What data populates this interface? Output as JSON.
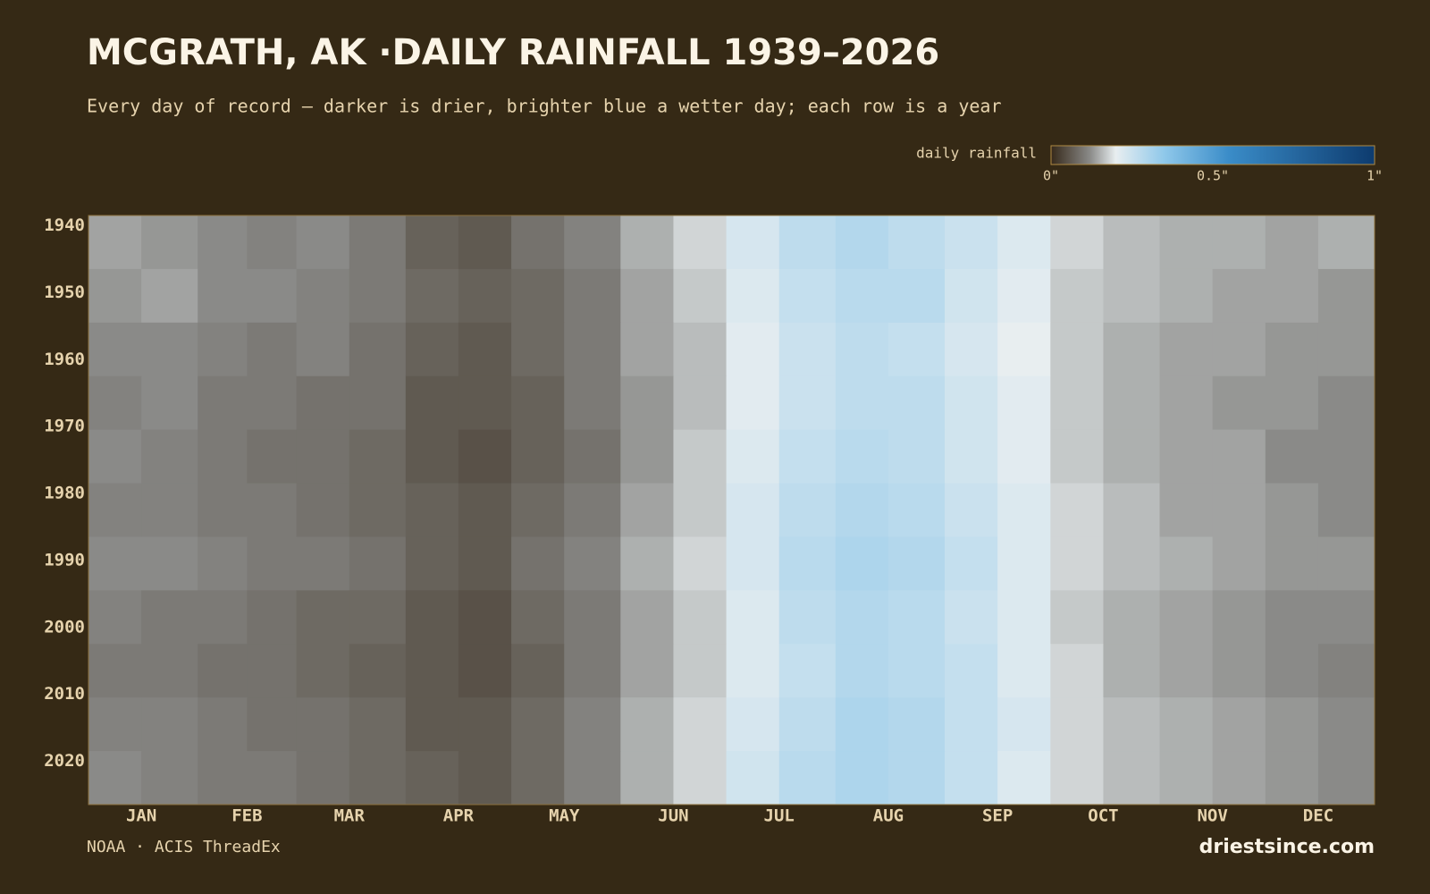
{
  "chart_data": {
    "type": "heatmap",
    "title": "MCGRATH, AK ·DAILY RAINFALL 1939–2026",
    "subtitle": "Every day of record — darker is drier, brighter blue a wetter day; each row is a year",
    "colorbar_label": "daily rainfall",
    "colorscale": [
      [
        0,
        "#36291a"
      ],
      [
        0.12,
        "#8a8a88"
      ],
      [
        0.2,
        "#e8eef0"
      ],
      [
        0.35,
        "#8fc8ea"
      ],
      [
        0.55,
        "#3a8cc8"
      ],
      [
        1,
        "#0d3b6e"
      ]
    ],
    "colorlim": [
      0,
      1
    ],
    "colorticks": [
      {
        "value": 0,
        "label": "0\""
      },
      {
        "value": 0.5,
        "label": "0.5\""
      },
      {
        "value": 1,
        "label": "1\""
      }
    ],
    "x_bins": [
      1,
      16,
      32,
      46,
      60,
      75,
      91,
      106,
      121,
      136,
      152,
      167,
      182,
      197,
      213,
      228,
      244,
      259,
      274,
      289,
      305,
      320,
      335,
      350,
      366
    ],
    "xlim": [
      1,
      366
    ],
    "xticks": [
      {
        "value": 16,
        "label": "JAN"
      },
      {
        "value": 46,
        "label": "FEB"
      },
      {
        "value": 75,
        "label": "MAR"
      },
      {
        "value": 106,
        "label": "APR"
      },
      {
        "value": 136,
        "label": "MAY"
      },
      {
        "value": 167,
        "label": "JUN"
      },
      {
        "value": 197,
        "label": "JUL"
      },
      {
        "value": 228,
        "label": "AUG"
      },
      {
        "value": 259,
        "label": "SEP"
      },
      {
        "value": 289,
        "label": "OCT"
      },
      {
        "value": 320,
        "label": "NOV"
      },
      {
        "value": 350,
        "label": "DEC"
      }
    ],
    "y_bins": [
      1939,
      1947,
      1955,
      1963,
      1971,
      1979,
      1987,
      1995,
      2003,
      2011,
      2019,
      2027
    ],
    "ylim": [
      1939,
      2027
    ],
    "yticks": [
      1940,
      1950,
      1960,
      1970,
      1980,
      1990,
      2000,
      2010,
      2020
    ],
    "values": [
      [
        0.14,
        0.13,
        0.12,
        0.11,
        0.12,
        0.1,
        0.07,
        0.06,
        0.09,
        0.11,
        0.15,
        0.18,
        0.23,
        0.27,
        0.29,
        0.27,
        0.25,
        0.22,
        0.18,
        0.16,
        0.15,
        0.15,
        0.14,
        0.15
      ],
      [
        0.13,
        0.14,
        0.12,
        0.12,
        0.11,
        0.1,
        0.08,
        0.07,
        0.08,
        0.1,
        0.14,
        0.17,
        0.22,
        0.26,
        0.28,
        0.28,
        0.24,
        0.21,
        0.17,
        0.16,
        0.15,
        0.14,
        0.14,
        0.13
      ],
      [
        0.12,
        0.12,
        0.11,
        0.1,
        0.11,
        0.09,
        0.07,
        0.06,
        0.08,
        0.1,
        0.14,
        0.16,
        0.21,
        0.25,
        0.27,
        0.26,
        0.23,
        0.2,
        0.17,
        0.15,
        0.14,
        0.14,
        0.13,
        0.13
      ],
      [
        0.11,
        0.12,
        0.1,
        0.1,
        0.09,
        0.09,
        0.06,
        0.06,
        0.07,
        0.1,
        0.13,
        0.16,
        0.21,
        0.25,
        0.27,
        0.27,
        0.24,
        0.21,
        0.17,
        0.15,
        0.14,
        0.13,
        0.13,
        0.12
      ],
      [
        0.12,
        0.11,
        0.1,
        0.09,
        0.09,
        0.08,
        0.06,
        0.05,
        0.07,
        0.09,
        0.13,
        0.17,
        0.22,
        0.26,
        0.28,
        0.27,
        0.24,
        0.21,
        0.17,
        0.15,
        0.14,
        0.14,
        0.12,
        0.12
      ],
      [
        0.11,
        0.11,
        0.1,
        0.1,
        0.09,
        0.08,
        0.07,
        0.06,
        0.08,
        0.1,
        0.14,
        0.17,
        0.23,
        0.27,
        0.29,
        0.28,
        0.25,
        0.22,
        0.18,
        0.16,
        0.14,
        0.14,
        0.13,
        0.12
      ],
      [
        0.12,
        0.12,
        0.11,
        0.1,
        0.1,
        0.09,
        0.07,
        0.06,
        0.09,
        0.11,
        0.15,
        0.18,
        0.23,
        0.28,
        0.3,
        0.29,
        0.26,
        0.22,
        0.18,
        0.16,
        0.15,
        0.14,
        0.13,
        0.13
      ],
      [
        0.11,
        0.1,
        0.1,
        0.09,
        0.08,
        0.08,
        0.06,
        0.05,
        0.08,
        0.1,
        0.14,
        0.17,
        0.22,
        0.27,
        0.29,
        0.28,
        0.25,
        0.22,
        0.17,
        0.15,
        0.14,
        0.13,
        0.12,
        0.12
      ],
      [
        0.1,
        0.1,
        0.09,
        0.09,
        0.08,
        0.07,
        0.06,
        0.05,
        0.07,
        0.1,
        0.14,
        0.17,
        0.22,
        0.26,
        0.29,
        0.28,
        0.26,
        0.22,
        0.18,
        0.15,
        0.14,
        0.13,
        0.12,
        0.11
      ],
      [
        0.11,
        0.11,
        0.1,
        0.09,
        0.09,
        0.08,
        0.06,
        0.06,
        0.08,
        0.11,
        0.15,
        0.18,
        0.23,
        0.27,
        0.3,
        0.29,
        0.26,
        0.23,
        0.18,
        0.16,
        0.15,
        0.14,
        0.13,
        0.12
      ],
      [
        0.12,
        0.11,
        0.1,
        0.1,
        0.09,
        0.08,
        0.07,
        0.06,
        0.08,
        0.11,
        0.15,
        0.18,
        0.24,
        0.28,
        0.3,
        0.29,
        0.26,
        0.22,
        0.18,
        0.16,
        0.15,
        0.14,
        0.13,
        0.12
      ]
    ],
    "source": "NOAA · ACIS ThreadEx",
    "site": "driestsince.com"
  }
}
